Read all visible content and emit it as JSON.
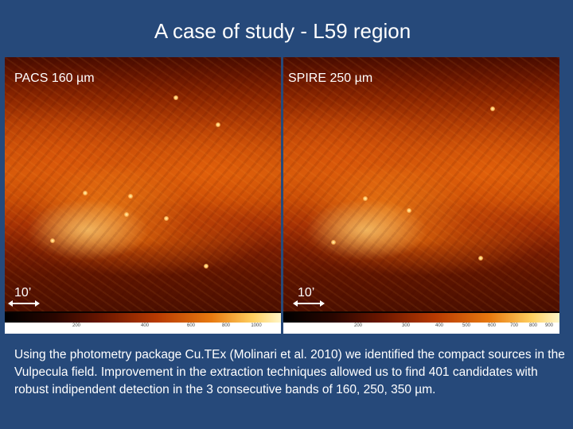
{
  "title": "A case of study -  L59 region",
  "panels": [
    {
      "band_label": "PACS 160 µm",
      "scale_label": "10’",
      "colorbar_ticks": [
        "200",
        "400",
        "600",
        "800",
        "1000"
      ]
    },
    {
      "band_label": "SPIRE 250 µm",
      "scale_label": "10’",
      "colorbar_ticks": [
        "200",
        "300",
        "400",
        "500",
        "600",
        "700",
        "800",
        "900"
      ]
    }
  ],
  "caption": "Using the photometry package Cu.TEx (Molinari et al. 2010) we identified the compact sources in the Vulpecula field. Improvement in the extraction techniques allowed us to find 401 candidates with robust indipendent detection in the 3 consecutive bands of 160, 250, 350 µm."
}
